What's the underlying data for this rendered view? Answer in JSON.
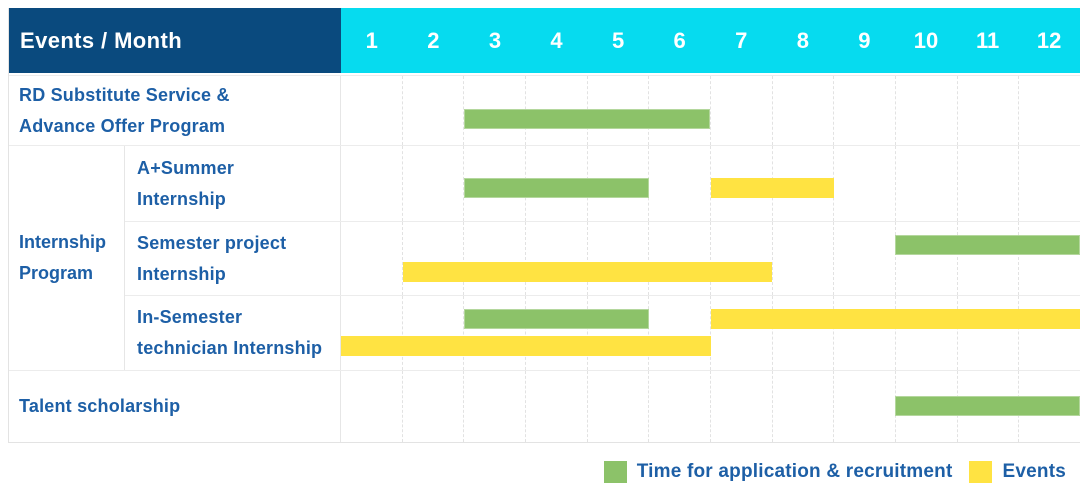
{
  "colors": {
    "header_bg": "#0A4A7E",
    "months_bg": "#06DBEF",
    "header_text": "#FFFFFF",
    "label_text": "#1D5FA6",
    "application_bar": "#8CC269",
    "events_bar": "#FFE342",
    "grid_line": "#E2E2E2"
  },
  "chart_data": {
    "type": "gantt",
    "title": "Events / Month",
    "x": {
      "label": "Month",
      "ticks": [
        "1",
        "2",
        "3",
        "4",
        "5",
        "6",
        "7",
        "8",
        "9",
        "10",
        "11",
        "12"
      ],
      "range": [
        1,
        12
      ],
      "grid": true
    },
    "legend_position": "bottom-right",
    "legend": [
      {
        "key": "application",
        "label": "Time for application & recruitment",
        "color": "#8CC269"
      },
      {
        "key": "events",
        "label": "Events",
        "color": "#FFE342"
      }
    ],
    "rows": [
      {
        "group": "",
        "label": "RD Substitute Service &\nAdvance Offer Program",
        "bars": [
          {
            "series": "application",
            "start_month": 3,
            "end_month": 6,
            "band": "single"
          }
        ]
      },
      {
        "group": "Internship\nProgram",
        "label": "A+Summer\nInternship",
        "bars": [
          {
            "series": "application",
            "start_month": 3,
            "end_month": 5,
            "band": "single"
          },
          {
            "series": "events",
            "start_month": 7,
            "end_month": 8,
            "band": "single"
          }
        ]
      },
      {
        "group": "Internship\nProgram",
        "label": "Semester project\nInternship",
        "bars": [
          {
            "series": "application",
            "start_month": 10,
            "end_month": 12,
            "band": "upper"
          },
          {
            "series": "events",
            "start_month": 2,
            "end_month": 7,
            "band": "lower"
          }
        ]
      },
      {
        "group": "Internship\nProgram",
        "label": "In-Semester\ntechnician Internship",
        "bars": [
          {
            "series": "application",
            "start_month": 3,
            "end_month": 5,
            "band": "upper"
          },
          {
            "series": "events",
            "start_month": 7,
            "end_month": 12,
            "band": "upper"
          },
          {
            "series": "events",
            "start_month": 1,
            "end_month": 6,
            "band": "lower"
          }
        ]
      },
      {
        "group": "",
        "label": "Talent scholarship",
        "bars": [
          {
            "series": "application",
            "start_month": 10,
            "end_month": 12,
            "band": "single"
          }
        ]
      }
    ]
  }
}
